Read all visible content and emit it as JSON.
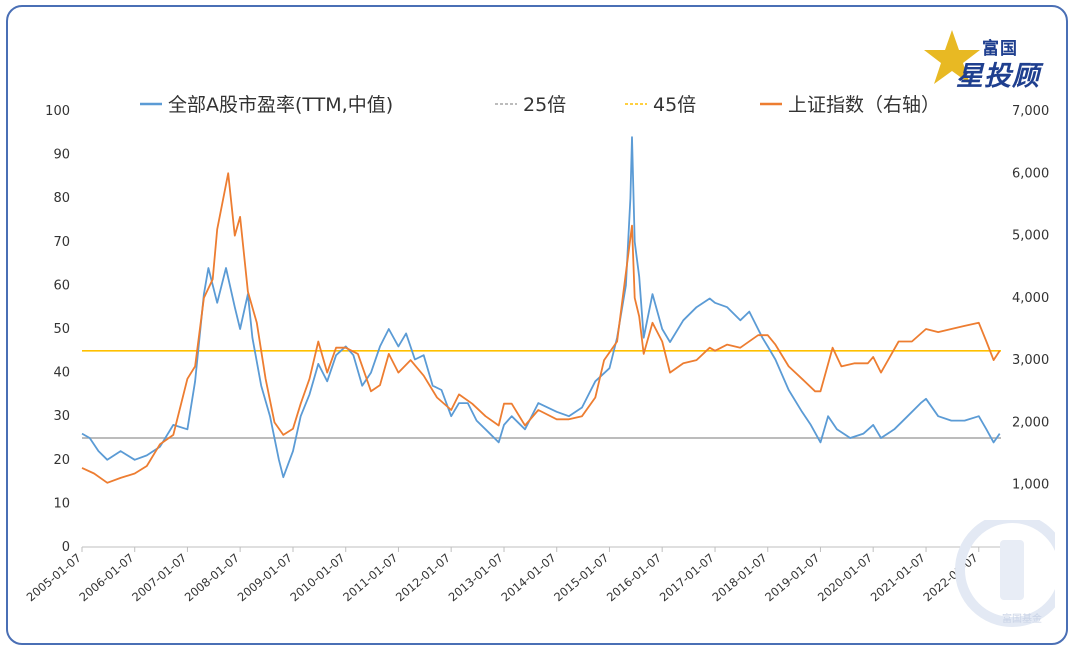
{
  "chart_data": {
    "type": "line",
    "title": "",
    "legend_position": "top",
    "series": [
      {
        "name": "全部A股市盈率(TTM,中值)",
        "axis": "left",
        "color": "#5b9bd5",
        "points": [
          [
            "2005-01-07",
            26
          ],
          [
            "2005-03-01",
            25
          ],
          [
            "2005-05-01",
            22
          ],
          [
            "2005-07-01",
            20
          ],
          [
            "2005-10-01",
            22
          ],
          [
            "2006-01-07",
            20
          ],
          [
            "2006-04-01",
            21
          ],
          [
            "2006-07-01",
            23
          ],
          [
            "2006-10-01",
            28
          ],
          [
            "2007-01-07",
            27
          ],
          [
            "2007-03-01",
            38
          ],
          [
            "2007-05-01",
            58
          ],
          [
            "2007-06-01",
            64
          ],
          [
            "2007-08-01",
            56
          ],
          [
            "2007-10-01",
            64
          ],
          [
            "2007-12-01",
            55
          ],
          [
            "2008-01-07",
            50
          ],
          [
            "2008-03-01",
            58
          ],
          [
            "2008-04-01",
            48
          ],
          [
            "2008-06-01",
            37
          ],
          [
            "2008-08-01",
            30
          ],
          [
            "2008-10-01",
            20
          ],
          [
            "2008-11-01",
            16
          ],
          [
            "2009-01-07",
            22
          ],
          [
            "2009-03-01",
            30
          ],
          [
            "2009-05-01",
            35
          ],
          [
            "2009-07-01",
            42
          ],
          [
            "2009-09-01",
            38
          ],
          [
            "2009-11-01",
            44
          ],
          [
            "2010-01-07",
            46
          ],
          [
            "2010-03-01",
            44
          ],
          [
            "2010-05-01",
            37
          ],
          [
            "2010-07-01",
            40
          ],
          [
            "2010-09-01",
            46
          ],
          [
            "2010-11-01",
            50
          ],
          [
            "2011-01-07",
            46
          ],
          [
            "2011-03-01",
            49
          ],
          [
            "2011-05-01",
            43
          ],
          [
            "2011-07-01",
            44
          ],
          [
            "2011-09-01",
            37
          ],
          [
            "2011-11-01",
            36
          ],
          [
            "2012-01-07",
            30
          ],
          [
            "2012-03-01",
            33
          ],
          [
            "2012-05-01",
            33
          ],
          [
            "2012-07-01",
            29
          ],
          [
            "2012-09-01",
            27
          ],
          [
            "2012-12-01",
            24
          ],
          [
            "2013-01-07",
            28
          ],
          [
            "2013-03-01",
            30
          ],
          [
            "2013-06-01",
            27
          ],
          [
            "2013-09-01",
            33
          ],
          [
            "2014-01-07",
            31
          ],
          [
            "2014-04-01",
            30
          ],
          [
            "2014-07-01",
            32
          ],
          [
            "2014-10-01",
            38
          ],
          [
            "2015-01-07",
            41
          ],
          [
            "2015-03-01",
            48
          ],
          [
            "2015-05-01",
            60
          ],
          [
            "2015-06-01",
            80
          ],
          [
            "2015-06-12",
            94
          ],
          [
            "2015-07-01",
            70
          ],
          [
            "2015-08-01",
            62
          ],
          [
            "2015-09-01",
            48
          ],
          [
            "2015-11-01",
            58
          ],
          [
            "2016-01-07",
            50
          ],
          [
            "2016-03-01",
            47
          ],
          [
            "2016-06-01",
            52
          ],
          [
            "2016-09-01",
            55
          ],
          [
            "2016-12-01",
            57
          ],
          [
            "2017-01-07",
            56
          ],
          [
            "2017-04-01",
            55
          ],
          [
            "2017-07-01",
            52
          ],
          [
            "2017-09-01",
            54
          ],
          [
            "2017-12-01",
            48
          ],
          [
            "2018-01-07",
            46
          ],
          [
            "2018-03-01",
            43
          ],
          [
            "2018-06-01",
            36
          ],
          [
            "2018-09-01",
            31
          ],
          [
            "2018-11-01",
            28
          ],
          [
            "2019-01-07",
            24
          ],
          [
            "2019-03-01",
            30
          ],
          [
            "2019-05-01",
            27
          ],
          [
            "2019-08-01",
            25
          ],
          [
            "2019-11-01",
            26
          ],
          [
            "2020-01-07",
            28
          ],
          [
            "2020-03-01",
            25
          ],
          [
            "2020-06-01",
            27
          ],
          [
            "2020-09-01",
            30
          ],
          [
            "2020-12-01",
            33
          ],
          [
            "2021-01-07",
            34
          ],
          [
            "2021-04-01",
            30
          ],
          [
            "2021-07-01",
            29
          ],
          [
            "2021-10-01",
            29
          ],
          [
            "2022-01-07",
            30
          ],
          [
            "2022-03-01",
            27
          ],
          [
            "2022-04-20",
            24
          ],
          [
            "2022-06-01",
            26
          ]
        ]
      },
      {
        "name": "25倍",
        "axis": "left",
        "color": "#a5a5a5",
        "constant": 25
      },
      {
        "name": "45倍",
        "axis": "left",
        "color": "#ffc000",
        "constant": 45
      },
      {
        "name": "上证指数（右轴）",
        "axis": "right",
        "color": "#ed7d31",
        "points": [
          [
            "2005-01-07",
            1270
          ],
          [
            "2005-04-01",
            1180
          ],
          [
            "2005-07-01",
            1030
          ],
          [
            "2005-10-01",
            1110
          ],
          [
            "2006-01-07",
            1180
          ],
          [
            "2006-04-01",
            1300
          ],
          [
            "2006-07-01",
            1650
          ],
          [
            "2006-10-01",
            1800
          ],
          [
            "2007-01-07",
            2700
          ],
          [
            "2007-03-01",
            2900
          ],
          [
            "2007-05-01",
            4000
          ],
          [
            "2007-07-01",
            4300
          ],
          [
            "2007-08-01",
            5100
          ],
          [
            "2007-10-16",
            6000
          ],
          [
            "2007-12-01",
            5000
          ],
          [
            "2008-01-07",
            5300
          ],
          [
            "2008-03-01",
            4100
          ],
          [
            "2008-05-01",
            3600
          ],
          [
            "2008-07-01",
            2700
          ],
          [
            "2008-09-01",
            2000
          ],
          [
            "2008-11-01",
            1800
          ],
          [
            "2009-01-07",
            1900
          ],
          [
            "2009-03-01",
            2300
          ],
          [
            "2009-05-01",
            2700
          ],
          [
            "2009-07-01",
            3300
          ],
          [
            "2009-09-01",
            2800
          ],
          [
            "2009-11-01",
            3200
          ],
          [
            "2010-01-07",
            3200
          ],
          [
            "2010-04-01",
            3100
          ],
          [
            "2010-07-01",
            2500
          ],
          [
            "2010-09-01",
            2600
          ],
          [
            "2010-11-01",
            3100
          ],
          [
            "2011-01-07",
            2800
          ],
          [
            "2011-04-01",
            3000
          ],
          [
            "2011-07-01",
            2750
          ],
          [
            "2011-10-01",
            2400
          ],
          [
            "2012-01-07",
            2200
          ],
          [
            "2012-03-01",
            2450
          ],
          [
            "2012-06-01",
            2300
          ],
          [
            "2012-09-01",
            2100
          ],
          [
            "2012-12-01",
            1950
          ],
          [
            "2013-01-07",
            2300
          ],
          [
            "2013-03-01",
            2300
          ],
          [
            "2013-06-01",
            1950
          ],
          [
            "2013-09-01",
            2200
          ],
          [
            "2014-01-07",
            2050
          ],
          [
            "2014-04-01",
            2050
          ],
          [
            "2014-07-01",
            2100
          ],
          [
            "2014-10-01",
            2400
          ],
          [
            "2014-12-01",
            3000
          ],
          [
            "2015-03-01",
            3300
          ],
          [
            "2015-05-01",
            4400
          ],
          [
            "2015-06-12",
            5160
          ],
          [
            "2015-07-01",
            4000
          ],
          [
            "2015-08-01",
            3700
          ],
          [
            "2015-09-01",
            3100
          ],
          [
            "2015-11-01",
            3600
          ],
          [
            "2016-01-07",
            3300
          ],
          [
            "2016-03-01",
            2800
          ],
          [
            "2016-06-01",
            2950
          ],
          [
            "2016-09-01",
            3000
          ],
          [
            "2016-12-01",
            3200
          ],
          [
            "2017-01-07",
            3150
          ],
          [
            "2017-04-01",
            3250
          ],
          [
            "2017-07-01",
            3200
          ],
          [
            "2017-11-01",
            3400
          ],
          [
            "2018-01-07",
            3400
          ],
          [
            "2018-03-01",
            3250
          ],
          [
            "2018-06-01",
            2900
          ],
          [
            "2018-09-01",
            2700
          ],
          [
            "2018-12-01",
            2500
          ],
          [
            "2019-01-07",
            2500
          ],
          [
            "2019-04-01",
            3200
          ],
          [
            "2019-06-01",
            2900
          ],
          [
            "2019-09-01",
            2950
          ],
          [
            "2019-12-01",
            2950
          ],
          [
            "2020-01-07",
            3050
          ],
          [
            "2020-03-01",
            2800
          ],
          [
            "2020-07-01",
            3300
          ],
          [
            "2020-10-01",
            3300
          ],
          [
            "2021-01-07",
            3500
          ],
          [
            "2021-04-01",
            3450
          ],
          [
            "2021-07-01",
            3500
          ],
          [
            "2021-10-01",
            3550
          ],
          [
            "2022-01-07",
            3600
          ],
          [
            "2022-03-01",
            3300
          ],
          [
            "2022-04-20",
            3000
          ],
          [
            "2022-06-01",
            3150
          ]
        ]
      }
    ],
    "y_left": {
      "min": 0,
      "max": 100,
      "ticks": [
        0,
        10,
        20,
        30,
        40,
        50,
        60,
        70,
        80,
        90,
        100
      ]
    },
    "y_right": {
      "min": 0,
      "max": 7000,
      "ticks": [
        0,
        1000,
        2000,
        3000,
        4000,
        5000,
        6000,
        7000
      ],
      "tick_labels": [
        "0",
        "1,000",
        "2,000",
        "3,000",
        "4,000",
        "5,000",
        "6,000",
        "7,000"
      ]
    },
    "x": {
      "min": "2005-01-07",
      "max": "2022-06-10",
      "ticks": [
        "2005-01-07",
        "2006-01-07",
        "2007-01-07",
        "2008-01-07",
        "2009-01-07",
        "2010-01-07",
        "2011-01-07",
        "2012-01-07",
        "2013-01-07",
        "2014-01-07",
        "2015-01-07",
        "2016-01-07",
        "2017-01-07",
        "2018-01-07",
        "2019-01-07",
        "2020-01-07",
        "2021-01-07",
        "2022-01-07"
      ]
    },
    "grid": false
  },
  "brand": {
    "line1": "富国",
    "line2": "星投顾"
  },
  "watermark": {
    "text": "富国基金"
  }
}
